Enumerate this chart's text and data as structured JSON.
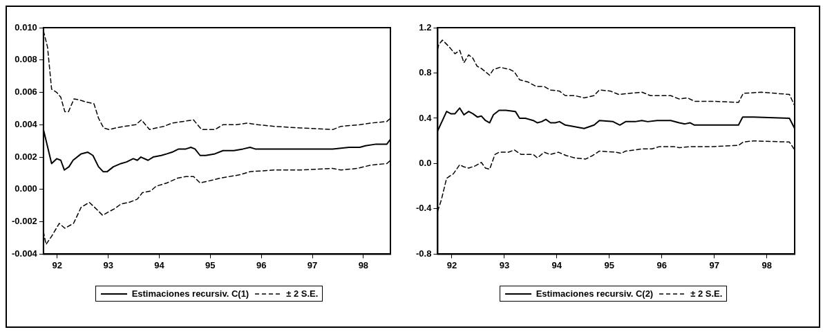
{
  "chart_data": [
    {
      "type": "line",
      "xlim": [
        91.73,
        98.53
      ],
      "xticks": [
        92,
        93,
        94,
        95,
        96,
        97,
        98
      ],
      "ylim": [
        -0.004,
        0.01
      ],
      "yticks": [
        {
          "value": -0.004,
          "label": "-0.004"
        },
        {
          "value": -0.002,
          "label": "-0.002"
        },
        {
          "value": 0,
          "label": "0.000"
        },
        {
          "value": 0.002,
          "label": "0.002"
        },
        {
          "value": 0.004,
          "label": "0.004"
        },
        {
          "value": 0.006,
          "label": "0.006"
        },
        {
          "value": 0.008,
          "label": "0.008"
        },
        {
          "value": 0.01,
          "label": "0.010"
        }
      ],
      "grid": false,
      "legend": "bottom",
      "marker": "none",
      "series": [
        {
          "name": "Estimaciones recursiv. C(1)",
          "color": "#000000",
          "line_style": "solid",
          "x": [
            91.73,
            91.89,
            91.99,
            92.07,
            92.14,
            92.23,
            92.31,
            92.47,
            92.6,
            92.7,
            92.81,
            92.9,
            92.98,
            93.1,
            93.25,
            93.36,
            93.49,
            93.57,
            93.64,
            93.78,
            93.88,
            94.04,
            94.15,
            94.25,
            94.38,
            94.52,
            94.62,
            94.7,
            94.8,
            94.91,
            95.09,
            95.25,
            95.46,
            95.64,
            95.78,
            95.88,
            96.25,
            96.77,
            97.04,
            97.4,
            97.72,
            97.93,
            98.04,
            98.25,
            98.46,
            98.53
          ],
          "values": [
            0.0037,
            0.0016,
            0.0019,
            0.0018,
            0.0012,
            0.0014,
            0.0018,
            0.0022,
            0.0023,
            0.0021,
            0.0014,
            0.0011,
            0.0011,
            0.0014,
            0.0016,
            0.0017,
            0.0019,
            0.0018,
            0.002,
            0.0018,
            0.002,
            0.0021,
            0.0022,
            0.0023,
            0.0025,
            0.0025,
            0.0026,
            0.0025,
            0.0021,
            0.0021,
            0.0022,
            0.0024,
            0.0024,
            0.0025,
            0.0026,
            0.0025,
            0.0025,
            0.0025,
            0.0025,
            0.0025,
            0.0026,
            0.0026,
            0.0027,
            0.0028,
            0.0028,
            0.0031
          ]
        },
        {
          "name": "± 2 S.E.",
          "color": "#000000",
          "line_style": "dashed",
          "x": [
            91.73,
            91.81,
            91.89,
            91.99,
            92.07,
            92.15,
            92.22,
            92.33,
            92.47,
            92.57,
            92.72,
            92.81,
            92.91,
            93.02,
            93.15,
            93.31,
            93.54,
            93.65,
            93.81,
            93.94,
            94.09,
            94.25,
            94.46,
            94.67,
            94.83,
            95.09,
            95.25,
            95.51,
            95.72,
            95.93,
            96.25,
            96.77,
            97.4,
            97.56,
            97.93,
            98.14,
            98.46,
            98.53
          ],
          "values": [
            0.0098,
            0.0088,
            0.0062,
            0.006,
            0.0057,
            0.0048,
            0.0048,
            0.0056,
            0.0055,
            0.0054,
            0.0053,
            0.0044,
            0.0038,
            0.0037,
            0.0038,
            0.0039,
            0.004,
            0.0043,
            0.0037,
            0.0038,
            0.0039,
            0.0041,
            0.0042,
            0.0043,
            0.0037,
            0.0037,
            0.004,
            0.004,
            0.0041,
            0.004,
            0.0039,
            0.0038,
            0.0037,
            0.0039,
            0.004,
            0.0041,
            0.0042,
            0.0044
          ]
        },
        {
          "color": "#000000",
          "line_style": "dashed",
          "x": [
            91.73,
            91.78,
            91.89,
            92.04,
            92.15,
            92.32,
            92.47,
            92.63,
            92.73,
            92.89,
            93.0,
            93.12,
            93.25,
            93.41,
            93.57,
            93.67,
            93.83,
            93.94,
            94.15,
            94.36,
            94.52,
            94.67,
            94.8,
            94.94,
            95.2,
            95.57,
            95.78,
            96.25,
            96.77,
            97.4,
            97.56,
            97.88,
            98.14,
            98.46,
            98.53
          ],
          "values": [
            -0.0026,
            -0.0034,
            -0.0029,
            -0.0021,
            -0.0024,
            -0.0021,
            -0.0011,
            -0.0008,
            -0.0011,
            -0.0016,
            -0.0014,
            -0.0012,
            -0.0009,
            -0.0008,
            -0.0006,
            -0.0002,
            -0.0001,
            0.0002,
            0.0004,
            0.0007,
            0.0008,
            0.0008,
            0.0004,
            0.0005,
            0.0007,
            0.0009,
            0.0011,
            0.0012,
            0.0012,
            0.0013,
            0.0012,
            0.0013,
            0.0015,
            0.0016,
            0.0018
          ]
        }
      ]
    },
    {
      "type": "line",
      "xlim": [
        91.73,
        98.53
      ],
      "xticks": [
        92,
        93,
        94,
        95,
        96,
        97,
        98
      ],
      "ylim": [
        -0.8,
        1.2
      ],
      "yticks": [
        {
          "value": -0.8,
          "label": "-0.8"
        },
        {
          "value": -0.4,
          "label": "-0.4"
        },
        {
          "value": 0,
          "label": "0.0"
        },
        {
          "value": 0.4,
          "label": "0.4"
        },
        {
          "value": 0.8,
          "label": "0.8"
        },
        {
          "value": 1.2,
          "label": "1.2"
        }
      ],
      "grid": false,
      "legend": "bottom",
      "marker": "none",
      "series": [
        {
          "name": "Estimaciones recursiv. C(2)",
          "color": "#000000",
          "line_style": "solid",
          "x": [
            91.73,
            91.9,
            91.98,
            92.06,
            92.15,
            92.23,
            92.32,
            92.4,
            92.49,
            92.56,
            92.64,
            92.72,
            92.79,
            92.9,
            93.03,
            93.21,
            93.29,
            93.4,
            93.55,
            93.63,
            93.71,
            93.79,
            93.88,
            93.97,
            94.05,
            94.16,
            94.29,
            94.52,
            94.71,
            94.81,
            95.07,
            95.2,
            95.31,
            95.49,
            95.62,
            95.73,
            95.91,
            96.17,
            96.33,
            96.44,
            96.54,
            96.62,
            96.96,
            97.46,
            97.54,
            97.75,
            98.43,
            98.53
          ],
          "values": [
            0.29,
            0.46,
            0.44,
            0.44,
            0.49,
            0.43,
            0.46,
            0.44,
            0.41,
            0.42,
            0.38,
            0.36,
            0.43,
            0.47,
            0.47,
            0.46,
            0.4,
            0.4,
            0.38,
            0.36,
            0.37,
            0.39,
            0.36,
            0.36,
            0.37,
            0.34,
            0.33,
            0.31,
            0.34,
            0.38,
            0.37,
            0.34,
            0.37,
            0.37,
            0.38,
            0.37,
            0.38,
            0.38,
            0.36,
            0.35,
            0.36,
            0.34,
            0.34,
            0.34,
            0.41,
            0.41,
            0.4,
            0.31
          ]
        },
        {
          "name": "± 2 S.E.",
          "color": "#000000",
          "line_style": "dashed",
          "x": [
            91.73,
            91.75,
            91.82,
            91.93,
            92.06,
            92.15,
            92.23,
            92.32,
            92.4,
            92.48,
            92.56,
            92.72,
            92.79,
            92.92,
            93.11,
            93.19,
            93.29,
            93.45,
            93.61,
            93.76,
            93.87,
            94.05,
            94.16,
            94.34,
            94.52,
            94.71,
            94.81,
            95.02,
            95.18,
            95.39,
            95.62,
            95.78,
            96.17,
            96.33,
            96.49,
            96.62,
            96.96,
            97.46,
            97.55,
            97.9,
            98.43,
            98.53
          ],
          "values": [
            1.01,
            1.05,
            1.09,
            1.04,
            0.97,
            1.0,
            0.89,
            0.96,
            0.93,
            0.86,
            0.84,
            0.78,
            0.83,
            0.85,
            0.83,
            0.81,
            0.74,
            0.72,
            0.68,
            0.68,
            0.65,
            0.64,
            0.6,
            0.6,
            0.58,
            0.6,
            0.65,
            0.64,
            0.61,
            0.62,
            0.63,
            0.6,
            0.6,
            0.57,
            0.58,
            0.55,
            0.55,
            0.54,
            0.62,
            0.63,
            0.61,
            0.51
          ]
        },
        {
          "color": "#000000",
          "line_style": "dashed",
          "x": [
            91.73,
            91.8,
            91.9,
            92.03,
            92.15,
            92.23,
            92.32,
            92.45,
            92.56,
            92.64,
            92.72,
            92.82,
            92.9,
            93.08,
            93.19,
            93.32,
            93.55,
            93.63,
            93.76,
            93.87,
            94.03,
            94.18,
            94.34,
            94.55,
            94.68,
            94.81,
            95.13,
            95.23,
            95.31,
            95.49,
            95.62,
            95.81,
            95.96,
            96.23,
            96.33,
            96.54,
            96.96,
            97.46,
            97.55,
            97.75,
            98.43,
            98.53
          ],
          "values": [
            -0.42,
            -0.32,
            -0.13,
            -0.09,
            -0.01,
            -0.03,
            -0.04,
            -0.02,
            0.01,
            -0.04,
            -0.05,
            0.08,
            0.1,
            0.1,
            0.12,
            0.08,
            0.08,
            0.05,
            0.1,
            0.08,
            0.1,
            0.07,
            0.05,
            0.04,
            0.07,
            0.11,
            0.1,
            0.09,
            0.11,
            0.12,
            0.13,
            0.13,
            0.15,
            0.15,
            0.14,
            0.15,
            0.15,
            0.16,
            0.19,
            0.2,
            0.19,
            0.12
          ]
        }
      ]
    }
  ]
}
